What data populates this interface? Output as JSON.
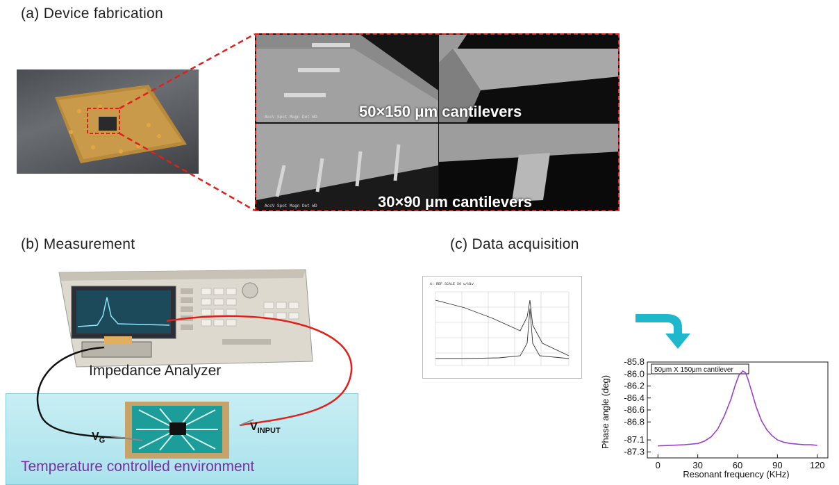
{
  "sections": {
    "a_title": "(a) Device fabrication",
    "b_title": "(b) Measurement",
    "c_title": "(c) Data acquisition"
  },
  "sem": {
    "label_top": "50×150 μm cantilevers",
    "label_bottom": "30×90 μm cantilevers"
  },
  "measurement": {
    "analyzer_label": "Impedance Analyzer",
    "vg_main": "V",
    "vg_sub": "G",
    "vin_main": "V",
    "vin_sub": "INPUT",
    "environment_label": "Temperature controlled environment"
  },
  "colors": {
    "dashed_red": "#e0201a",
    "wire_red": "#e0201a",
    "env_fill": "#b8e8f0",
    "env_text": "#7a2fa6",
    "curve": "#9b3fc9",
    "arrow": "#1fb7cc"
  },
  "chart_data": {
    "type": "line",
    "annotation": "50μm X 150μm cantilever",
    "xlabel": "Resonant frequency (KHz)",
    "ylabel": "Phase angle (deg)",
    "xlim": [
      -8,
      128
    ],
    "ylim": [
      -87.4,
      -85.8
    ],
    "x_ticks": [
      "0",
      "30",
      "60",
      "90",
      "120"
    ],
    "y_ticks": [
      "-85.8",
      "-86.0",
      "-86.2",
      "-86.4",
      "-86.6",
      "-86.8",
      "-87.1",
      "-87.3"
    ],
    "series": [
      {
        "x": [
          0,
          10,
          20,
          30,
          35,
          40,
          45,
          50,
          55,
          58,
          61,
          64,
          66,
          68,
          71,
          74,
          78,
          82,
          86,
          90,
          95,
          100,
          105,
          110,
          115,
          120
        ],
        "y": [
          -87.2,
          -87.19,
          -87.18,
          -87.16,
          -87.12,
          -87.05,
          -86.92,
          -86.7,
          -86.42,
          -86.2,
          -86.02,
          -85.95,
          -85.98,
          -86.1,
          -86.32,
          -86.55,
          -86.78,
          -86.93,
          -87.03,
          -87.1,
          -87.14,
          -87.16,
          -87.17,
          -87.18,
          -87.18,
          -87.19
        ]
      }
    ]
  }
}
